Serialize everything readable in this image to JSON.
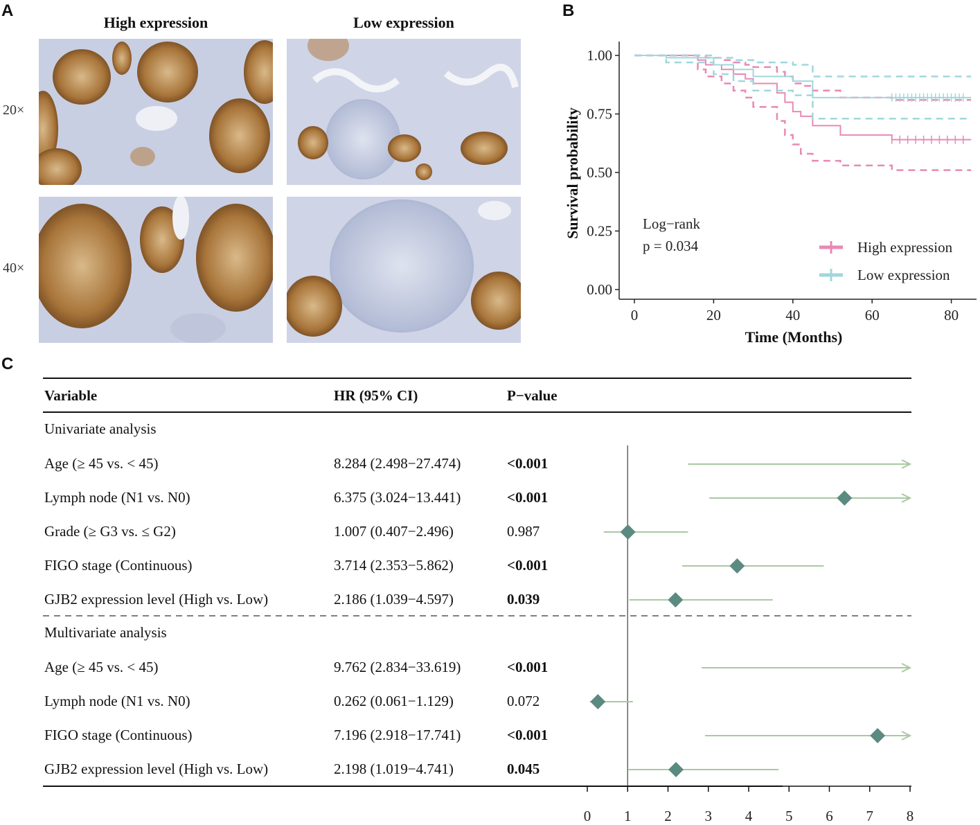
{
  "panels": {
    "a": "A",
    "b": "B",
    "c": "C"
  },
  "panel_a": {
    "columns": [
      "High expression",
      "Low expression"
    ],
    "rows": [
      "20×",
      "40×"
    ]
  },
  "chart_data": [
    {
      "type": "line",
      "title": "",
      "xlabel": "Time (Months)",
      "ylabel": "Survival probability",
      "xlim": [
        0,
        85
      ],
      "ylim": [
        0,
        1
      ],
      "xticks": [
        "0",
        "20",
        "40",
        "60",
        "80"
      ],
      "yticks": [
        "0.00",
        "0.25",
        "0.50",
        "0.75",
        "1.00"
      ],
      "annotation": [
        "Log−rank",
        "p = 0.034"
      ],
      "legend": [
        "High expression",
        "Low expression"
      ],
      "series": [
        {
          "name": "High expression",
          "color": "#e889b4",
          "x": [
            0,
            16,
            18,
            22,
            25,
            28,
            30,
            36,
            38,
            40,
            42,
            45,
            52,
            65,
            85
          ],
          "y": [
            1.0,
            0.98,
            0.96,
            0.94,
            0.92,
            0.9,
            0.88,
            0.84,
            0.8,
            0.76,
            0.74,
            0.7,
            0.66,
            0.64,
            0.64
          ],
          "ci_upper": [
            1.0,
            1.0,
            0.99,
            0.98,
            0.97,
            0.96,
            0.95,
            0.93,
            0.91,
            0.88,
            0.87,
            0.85,
            0.82,
            0.81,
            0.81
          ],
          "ci_lower": [
            1.0,
            0.94,
            0.91,
            0.88,
            0.85,
            0.82,
            0.78,
            0.72,
            0.66,
            0.62,
            0.58,
            0.55,
            0.53,
            0.51,
            0.51
          ],
          "censor_x": [
            65,
            67,
            69,
            71,
            73,
            75,
            77,
            79,
            81,
            83
          ]
        },
        {
          "name": "Low expression",
          "color": "#9fd7dd",
          "x": [
            0,
            8,
            20,
            25,
            30,
            40,
            45,
            85
          ],
          "y": [
            1.0,
            0.99,
            0.96,
            0.94,
            0.91,
            0.89,
            0.82,
            0.82
          ],
          "ci_upper": [
            1.0,
            1.0,
            0.99,
            0.98,
            0.97,
            0.96,
            0.91,
            0.91
          ],
          "ci_lower": [
            1.0,
            0.97,
            0.92,
            0.89,
            0.85,
            0.83,
            0.73,
            0.73
          ],
          "censor_x": [
            65,
            66,
            67,
            68,
            69,
            70,
            71,
            72,
            73,
            74,
            75,
            76,
            77,
            78,
            79,
            80,
            81,
            82,
            83
          ]
        }
      ]
    },
    {
      "type": "forest",
      "headers": [
        "Variable",
        "HR (95% CI)",
        "P−value"
      ],
      "axis_ticks": [
        "0",
        "1",
        "2",
        "3",
        "4",
        "5",
        "6",
        "7",
        "8"
      ],
      "axis_range": [
        0,
        8
      ],
      "reference_line": 1,
      "sections": [
        {
          "title": "Univariate analysis",
          "rows": [
            {
              "variable": "Age (≥ 45 vs. < 45)",
              "hr_text": "8.284 (2.498−27.474)",
              "p": "<0.001",
              "bold": true,
              "hr": 8.284,
              "lo": 2.498,
              "hi": 27.474
            },
            {
              "variable": "Lymph node (N1 vs. N0)",
              "hr_text": "6.375 (3.024−13.441)",
              "p": "<0.001",
              "bold": true,
              "hr": 6.375,
              "lo": 3.024,
              "hi": 13.441
            },
            {
              "variable": "Grade (≥ G3 vs. ≤ G2)",
              "hr_text": "1.007 (0.407−2.496)",
              "p": "0.987",
              "bold": false,
              "hr": 1.007,
              "lo": 0.407,
              "hi": 2.496
            },
            {
              "variable": "FIGO stage (Continuous)",
              "hr_text": "3.714 (2.353−5.862)",
              "p": "<0.001",
              "bold": true,
              "hr": 3.714,
              "lo": 2.353,
              "hi": 5.862
            },
            {
              "variable": "GJB2 expression level (High vs. Low)",
              "hr_text": "2.186 (1.039−4.597)",
              "p": "0.039",
              "bold": true,
              "hr": 2.186,
              "lo": 1.039,
              "hi": 4.597
            }
          ]
        },
        {
          "title": "Multivariate analysis",
          "rows": [
            {
              "variable": "Age (≥ 45 vs. < 45)",
              "hr_text": "9.762 (2.834−33.619)",
              "p": "<0.001",
              "bold": true,
              "hr": 9.762,
              "lo": 2.834,
              "hi": 33.619
            },
            {
              "variable": "Lymph node (N1 vs. N0)",
              "hr_text": "0.262 (0.061−1.129)",
              "p": "0.072",
              "bold": false,
              "hr": 0.262,
              "lo": 0.061,
              "hi": 1.129
            },
            {
              "variable": "FIGO stage (Continuous)",
              "hr_text": "7.196 (2.918−17.741)",
              "p": "<0.001",
              "bold": true,
              "hr": 7.196,
              "lo": 2.918,
              "hi": 17.741
            },
            {
              "variable": "GJB2 expression level (High vs. Low)",
              "hr_text": "2.198 (1.019−4.741)",
              "p": "0.045",
              "bold": true,
              "hr": 2.198,
              "lo": 1.019,
              "hi": 4.741
            }
          ]
        }
      ]
    }
  ]
}
